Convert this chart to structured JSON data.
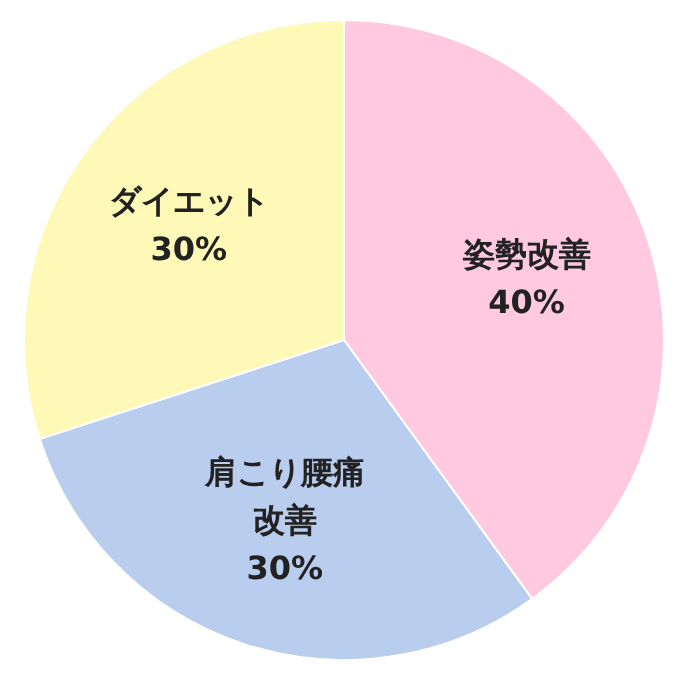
{
  "chart_data": {
    "type": "pie",
    "categories": [
      "姿勢改善",
      "肩こり腰痛改善",
      "ダイエット"
    ],
    "values": [
      40,
      30,
      30
    ],
    "colors": [
      "#ffc9e0",
      "#b9cdef",
      "#fff9b8"
    ],
    "value_labels": [
      "40%",
      "30%",
      "30%"
    ]
  }
}
